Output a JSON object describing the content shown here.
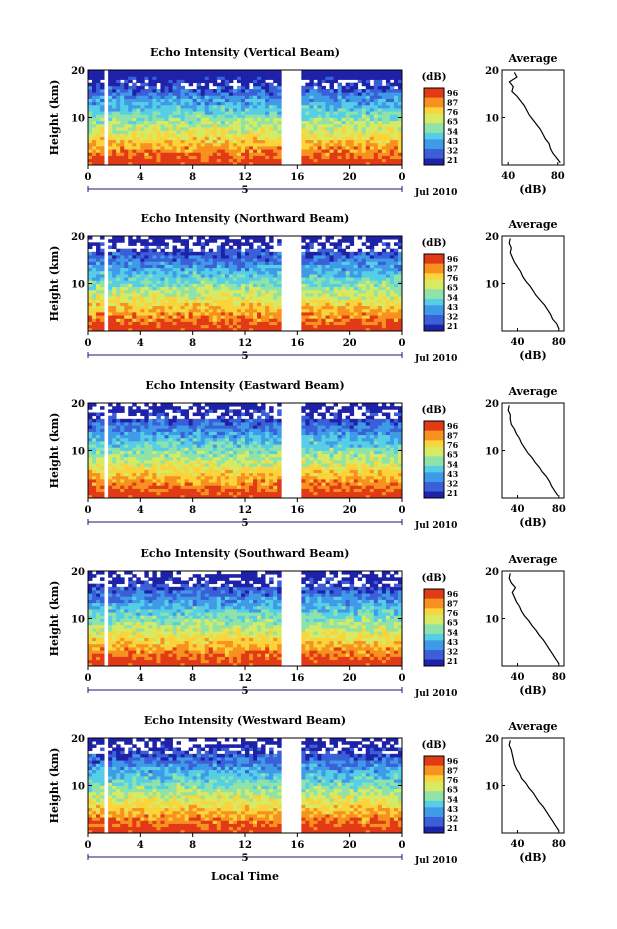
{
  "figure": {
    "x_axis_title": "Local Time",
    "date_label": "Jul 2010",
    "day_label": "5",
    "colorbar_title": "(dB)",
    "colorbar_ticks": [
      "96",
      "87",
      "76",
      "65",
      "54",
      "43",
      "32",
      "21"
    ],
    "avg_title": "Average",
    "avg_xlabel": "(dB)",
    "y_axis_title": "Height (km)",
    "colors": {
      "heatmap": [
        "#1e22a8",
        "#3a5fd8",
        "#3f9ae8",
        "#56cfe6",
        "#8fe3a8",
        "#d7ea64",
        "#fbd33a",
        "#f7911f",
        "#e23a16"
      ]
    }
  },
  "chart_data": [
    {
      "type": "heatmap",
      "title": "Echo Intensity (Vertical Beam)",
      "x_ticks": [
        "0",
        "4",
        "8",
        "12",
        "16",
        "20",
        "0"
      ],
      "xlim_hours": [
        0,
        24
      ],
      "ylim_km": [
        0,
        20
      ],
      "y_ticks": [
        "20",
        "10"
      ],
      "data_gaps_hours": [
        [
          1.2,
          1.5
        ],
        [
          14.7,
          16.4
        ]
      ],
      "colorbar_range_db": [
        21,
        96
      ],
      "average_profile": {
        "x_ticks": [
          "40",
          "80"
        ],
        "y_ticks": [
          "20",
          "10"
        ],
        "xlim": [
          35,
          85
        ],
        "height_km": [
          0,
          1,
          2,
          3,
          4,
          5,
          6,
          7,
          8,
          9,
          10,
          11,
          12,
          13,
          14,
          15,
          16,
          17,
          18,
          19
        ],
        "value_db": [
          82,
          79,
          76,
          74,
          73,
          70,
          68,
          66,
          63,
          60,
          57,
          55,
          53,
          50,
          47,
          43,
          44,
          41,
          47,
          45
        ]
      }
    },
    {
      "type": "heatmap",
      "title": "Echo Intensity (Northward Beam)",
      "x_ticks": [
        "0",
        "4",
        "8",
        "12",
        "16",
        "20",
        "0"
      ],
      "xlim_hours": [
        0,
        24
      ],
      "ylim_km": [
        0,
        20
      ],
      "y_ticks": [
        "20",
        "10"
      ],
      "data_gaps_hours": [
        [
          1.2,
          1.5
        ],
        [
          14.7,
          16.4
        ]
      ],
      "colorbar_range_db": [
        21,
        96
      ],
      "average_profile": {
        "x_ticks": [
          "40",
          "80"
        ],
        "y_ticks": [
          "20",
          "10"
        ],
        "xlim": [
          25,
          85
        ],
        "height_km": [
          0,
          1,
          2,
          3,
          4,
          5,
          6,
          7,
          8,
          9,
          10,
          11,
          12,
          13,
          14,
          15,
          16,
          17,
          18,
          19
        ],
        "value_db": [
          80,
          78,
          74,
          72,
          69,
          66,
          62,
          58,
          55,
          52,
          48,
          45,
          43,
          40,
          37,
          35,
          33,
          34,
          32,
          33
        ]
      }
    },
    {
      "type": "heatmap",
      "title": "Echo Intensity (Eastward Beam)",
      "x_ticks": [
        "0",
        "4",
        "8",
        "12",
        "16",
        "20",
        "0"
      ],
      "xlim_hours": [
        0,
        24
      ],
      "ylim_km": [
        0,
        20
      ],
      "y_ticks": [
        "20",
        "10"
      ],
      "data_gaps_hours": [
        [
          1.2,
          1.5
        ],
        [
          14.7,
          16.4
        ]
      ],
      "colorbar_range_db": [
        21,
        96
      ],
      "average_profile": {
        "x_ticks": [
          "40",
          "80"
        ],
        "y_ticks": [
          "20",
          "10"
        ],
        "xlim": [
          25,
          85
        ],
        "height_km": [
          0,
          1,
          2,
          3,
          4,
          5,
          6,
          7,
          8,
          9,
          10,
          11,
          12,
          13,
          14,
          15,
          16,
          17,
          18,
          19
        ],
        "value_db": [
          79,
          76,
          73,
          71,
          68,
          64,
          61,
          57,
          54,
          50,
          47,
          44,
          42,
          39,
          37,
          34,
          33,
          33,
          31,
          32
        ]
      }
    },
    {
      "type": "heatmap",
      "title": "Echo Intensity (Southward Beam)",
      "x_ticks": [
        "0",
        "4",
        "8",
        "12",
        "16",
        "20",
        "0"
      ],
      "xlim_hours": [
        0,
        24
      ],
      "ylim_km": [
        0,
        20
      ],
      "y_ticks": [
        "20",
        "10"
      ],
      "data_gaps_hours": [
        [
          1.2,
          1.5
        ],
        [
          14.7,
          16.4
        ]
      ],
      "colorbar_range_db": [
        21,
        96
      ],
      "average_profile": {
        "x_ticks": [
          "40",
          "80"
        ],
        "y_ticks": [
          "20",
          "10"
        ],
        "xlim": [
          25,
          85
        ],
        "height_km": [
          0,
          1,
          2,
          3,
          4,
          5,
          6,
          7,
          8,
          9,
          10,
          11,
          12,
          13,
          14,
          15,
          16,
          17,
          18,
          19
        ],
        "value_db": [
          80,
          77,
          74,
          71,
          68,
          65,
          61,
          58,
          54,
          51,
          47,
          44,
          42,
          39,
          37,
          35,
          38,
          34,
          32,
          33
        ]
      }
    },
    {
      "type": "heatmap",
      "title": "Echo Intensity (Westward Beam)",
      "x_ticks": [
        "0",
        "4",
        "8",
        "12",
        "16",
        "20",
        "0"
      ],
      "xlim_hours": [
        0,
        24
      ],
      "ylim_km": [
        0,
        20
      ],
      "y_ticks": [
        "20",
        "10"
      ],
      "data_gaps_hours": [
        [
          1.2,
          1.5
        ],
        [
          14.7,
          16.4
        ]
      ],
      "colorbar_range_db": [
        21,
        96
      ],
      "average_profile": {
        "x_ticks": [
          "40",
          "80"
        ],
        "y_ticks": [
          "20",
          "10"
        ],
        "xlim": [
          25,
          85
        ],
        "height_km": [
          0,
          1,
          2,
          3,
          4,
          5,
          6,
          7,
          8,
          9,
          10,
          11,
          12,
          13,
          14,
          15,
          16,
          17,
          18,
          19
        ],
        "value_db": [
          80,
          77,
          74,
          71,
          68,
          65,
          61,
          58,
          55,
          51,
          48,
          44,
          42,
          39,
          37,
          36,
          35,
          34,
          32,
          33
        ]
      }
    }
  ]
}
